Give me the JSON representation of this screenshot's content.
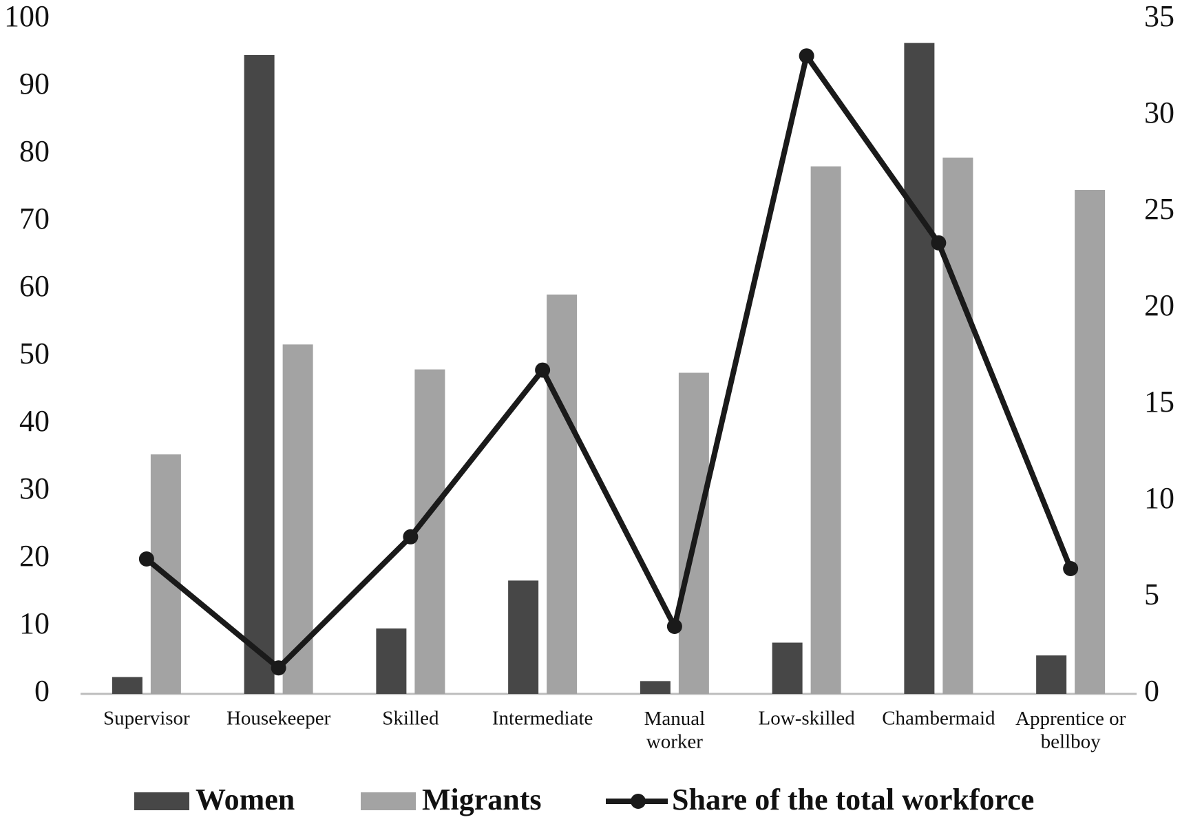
{
  "chart_data": {
    "type": "bar-line",
    "categories": [
      "Supervisor",
      "Housekeeper",
      "Skilled",
      "Intermediate",
      "Manual\nworker",
      "Low-skilled",
      "Chambermaid",
      "Apprentice or\nbellboy"
    ],
    "series": [
      {
        "name": "Women",
        "type": "bar",
        "color": "#474747",
        "values": [
          2.5,
          94.7,
          9.7,
          16.8,
          1.9,
          7.6,
          96.5,
          5.7
        ]
      },
      {
        "name": "Migrants",
        "type": "bar",
        "color": "#a3a3a3",
        "values": [
          35.5,
          51.8,
          48.1,
          59.2,
          47.6,
          78.2,
          79.5,
          74.7
        ]
      },
      {
        "name": "Share of the total workforce",
        "type": "line",
        "axis": "y2",
        "color": "#1a1a1a",
        "values": [
          7.0,
          1.35,
          8.15,
          16.8,
          3.5,
          33.1,
          23.4,
          6.5
        ]
      }
    ],
    "ylim": [
      0,
      100
    ],
    "yticks": [
      0,
      10,
      20,
      30,
      40,
      50,
      60,
      70,
      80,
      90,
      100
    ],
    "y2lim": [
      0,
      35
    ],
    "y2ticks": [
      0,
      5,
      10,
      15,
      20,
      25,
      30,
      35
    ],
    "grid": false,
    "legend": "bottom"
  }
}
